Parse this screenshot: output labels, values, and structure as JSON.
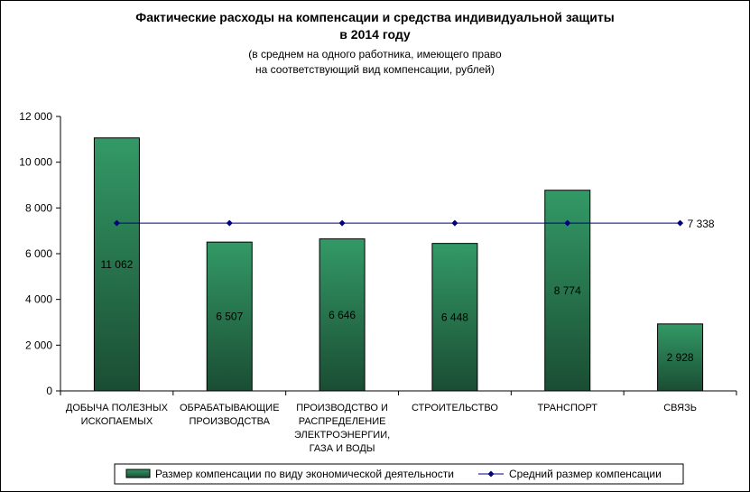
{
  "chart_data": {
    "type": "bar",
    "title": "Фактические расходы на компенсации и средства индивидуальной защиты",
    "title_line2": "в 2014 году",
    "subtitle_line1": "(в среднем на одного работника, имеющего право",
    "subtitle_line2": "на соответствующий вид компенсации, рублей)",
    "categories": [
      [
        "ДОБЫЧА ПОЛЕЗНЫХ",
        "ИСКОПАЕМЫХ"
      ],
      [
        "ОБРАБАТЫВАЮЩИЕ",
        "ПРОИЗВОДСТВА"
      ],
      [
        "ПРОИЗВОДСТВО И",
        "РАСПРЕДЕЛЕНИЕ",
        "ЭЛЕКТРОЭНЕРГИИ,",
        "ГАЗА И ВОДЫ"
      ],
      [
        "СТРОИТЕЛЬСТВО"
      ],
      [
        "ТРАНСПОРТ"
      ],
      [
        "СВЯЗЬ"
      ]
    ],
    "series": [
      {
        "name": "Размер компенсации по  виду экономической деятельности",
        "type": "bar",
        "values": [
          11062,
          6507,
          6646,
          6448,
          8774,
          2928
        ],
        "labels": [
          "11 062",
          "6 507",
          "6 646",
          "6 448",
          "8 774",
          "2 928"
        ],
        "color_top": "#339966",
        "color_bottom": "#1a4d33"
      },
      {
        "name": "Средний размер компенсации",
        "type": "line",
        "values": [
          7338,
          7338,
          7338,
          7338,
          7338,
          7338
        ],
        "end_label": "7 338",
        "color": "#000080"
      }
    ],
    "ylim": [
      0,
      12000
    ],
    "yticks": [
      0,
      2000,
      4000,
      6000,
      8000,
      10000,
      12000
    ],
    "ytick_labels": [
      "0",
      "2 000",
      "4 000",
      "6 000",
      "8 000",
      "10 000",
      "12 000"
    ],
    "grid": false,
    "legend_position": "bottom"
  }
}
